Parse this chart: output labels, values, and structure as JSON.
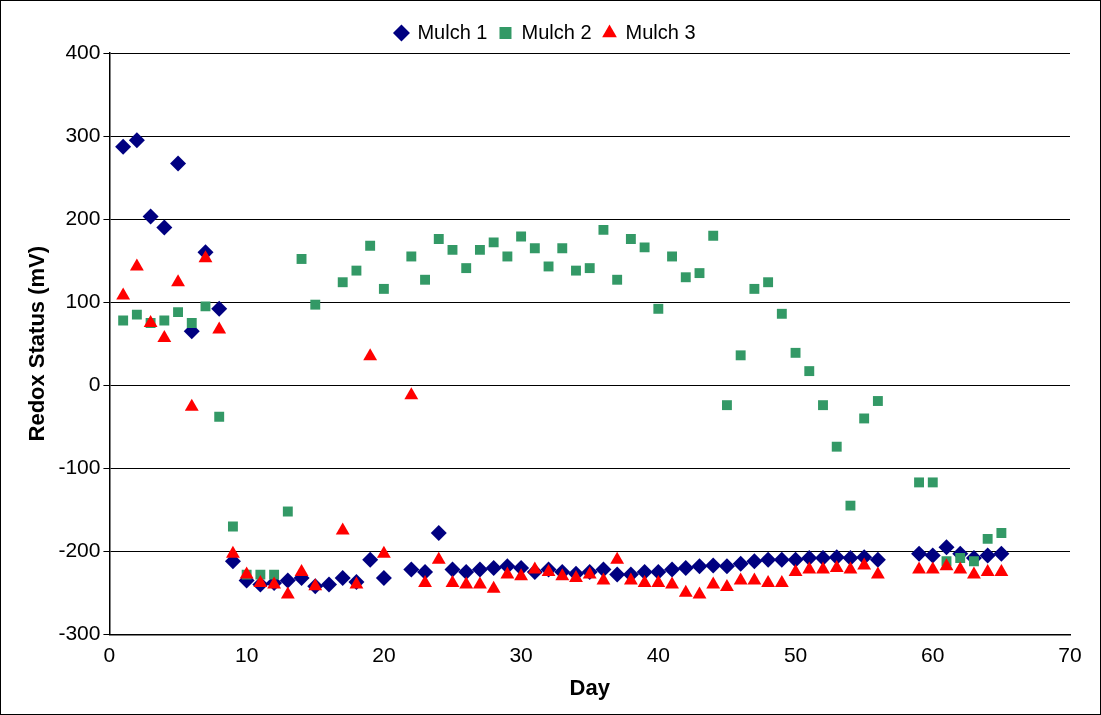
{
  "chart_data": {
    "type": "scatter",
    "xlabel": "Day",
    "ylabel": "Redox Status (mV)",
    "xlim": [
      0,
      70
    ],
    "xticks": [
      0,
      10,
      20,
      30,
      40,
      50,
      60,
      70
    ],
    "ylim": [
      -300,
      400
    ],
    "yticks": [
      -300,
      -200,
      -100,
      0,
      100,
      200,
      300,
      400
    ],
    "grid": "y",
    "legend": "top",
    "series": [
      {
        "name": "Mulch 1",
        "color": "#000080",
        "marker": "diamond",
        "x": [
          1,
          2,
          3,
          4,
          5,
          6,
          7,
          8,
          9,
          10,
          11,
          12,
          13,
          14,
          15,
          16,
          17,
          18,
          19,
          20,
          22,
          23,
          24,
          25,
          26,
          27,
          28,
          29,
          30,
          31,
          32,
          33,
          34,
          35,
          36,
          37,
          38,
          39,
          40,
          41,
          42,
          43,
          44,
          45,
          46,
          47,
          48,
          49,
          50,
          51,
          52,
          53,
          54,
          55,
          56,
          59,
          60,
          61,
          62,
          63,
          64,
          65
        ],
        "values": [
          287,
          295,
          203,
          190,
          267,
          65,
          160,
          92,
          -212,
          -235,
          -240,
          -238,
          -235,
          -232,
          -242,
          -240,
          -232,
          -237,
          -210,
          -232,
          -222,
          -225,
          -178,
          -222,
          -225,
          -222,
          -220,
          -218,
          -220,
          -225,
          -222,
          -225,
          -227,
          -225,
          -222,
          -228,
          -228,
          -225,
          -225,
          -222,
          -220,
          -218,
          -217,
          -218,
          -215,
          -212,
          -210,
          -210,
          -210,
          -208,
          -208,
          -207,
          -208,
          -207,
          -210,
          -203,
          -205,
          -195,
          -203,
          -208,
          -205,
          -203
        ]
      },
      {
        "name": "Mulch 2",
        "color": "#339966",
        "marker": "square",
        "x": [
          1,
          2,
          3,
          4,
          5,
          6,
          7,
          8,
          9,
          10,
          11,
          12,
          13,
          14,
          15,
          17,
          18,
          19,
          20,
          22,
          23,
          24,
          25,
          26,
          27,
          28,
          29,
          30,
          31,
          32,
          33,
          34,
          35,
          36,
          37,
          38,
          39,
          40,
          41,
          42,
          43,
          44,
          45,
          46,
          47,
          48,
          49,
          50,
          51,
          52,
          53,
          54,
          55,
          56,
          59,
          60,
          61,
          62,
          63,
          64,
          65
        ],
        "values": [
          78,
          85,
          75,
          78,
          88,
          75,
          95,
          -38,
          -170,
          -228,
          -228,
          -228,
          -152,
          152,
          97,
          124,
          138,
          168,
          116,
          155,
          127,
          176,
          163,
          141,
          163,
          172,
          155,
          179,
          165,
          143,
          165,
          138,
          141,
          187,
          127,
          176,
          166,
          92,
          155,
          130,
          135,
          180,
          -24,
          36,
          116,
          124,
          86,
          39,
          17,
          -24,
          -74,
          -145,
          -40,
          -19,
          -117,
          -117,
          -212,
          -208,
          -212,
          -185,
          -178
        ]
      },
      {
        "name": "Mulch 3",
        "color": "#ff0000",
        "marker": "triangle",
        "x": [
          1,
          2,
          3,
          4,
          5,
          6,
          7,
          8,
          9,
          10,
          11,
          12,
          13,
          14,
          15,
          17,
          18,
          19,
          20,
          22,
          23,
          24,
          25,
          26,
          27,
          28,
          29,
          30,
          31,
          32,
          33,
          34,
          35,
          36,
          37,
          38,
          39,
          40,
          41,
          42,
          43,
          44,
          45,
          46,
          47,
          48,
          49,
          50,
          51,
          52,
          53,
          54,
          55,
          56,
          59,
          60,
          61,
          62,
          63,
          64,
          65
        ],
        "values": [
          108,
          143,
          75,
          57,
          124,
          -26,
          153,
          67,
          -203,
          -228,
          -238,
          -240,
          -252,
          -225,
          -242,
          -175,
          -240,
          35,
          -203,
          -12,
          -238,
          -210,
          -238,
          -240,
          -240,
          -245,
          -228,
          -230,
          -222,
          -225,
          -230,
          -232,
          -228,
          -235,
          -210,
          -235,
          -238,
          -238,
          -240,
          -250,
          -252,
          -240,
          -243,
          -235,
          -235,
          -238,
          -238,
          -225,
          -222,
          -222,
          -220,
          -222,
          -217,
          -228,
          -222,
          -222,
          -218,
          -222,
          -228,
          -225,
          -225
        ]
      }
    ]
  }
}
